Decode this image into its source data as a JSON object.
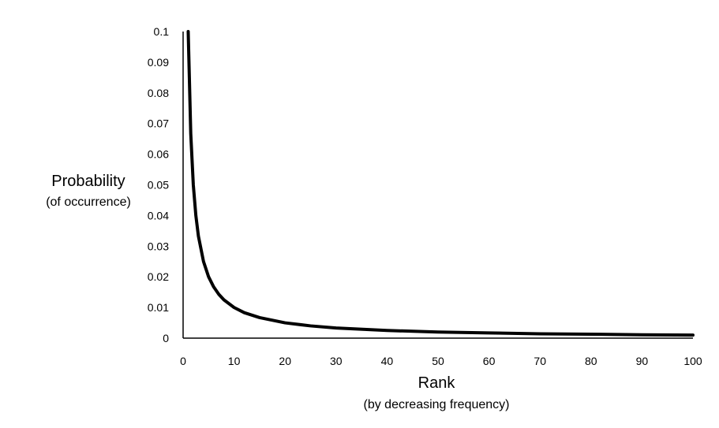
{
  "chart_data": {
    "type": "line",
    "title": "",
    "xlabel": "Rank",
    "xlabel_sub": "(by decreasing frequency)",
    "ylabel": "Probability",
    "ylabel_sub": "(of occurrence)",
    "xlim": [
      0,
      100
    ],
    "ylim": [
      0,
      0.1
    ],
    "x_ticks": [
      0,
      10,
      20,
      30,
      40,
      50,
      60,
      70,
      80,
      90,
      100
    ],
    "y_ticks": [
      0,
      0.01,
      0.02,
      0.03,
      0.04,
      0.05,
      0.06,
      0.07,
      0.08,
      0.09,
      0.1
    ],
    "grid": false,
    "legend": "none",
    "line_color": "#000000",
    "series": [
      {
        "x": [
          1,
          1.5,
          2,
          2.5,
          3,
          4,
          5,
          6,
          7,
          8,
          10,
          12,
          15,
          20,
          25,
          30,
          40,
          50,
          60,
          70,
          80,
          90,
          100
        ],
        "values": [
          0.1,
          0.0667,
          0.05,
          0.04,
          0.0333,
          0.025,
          0.02,
          0.0167,
          0.0143,
          0.0125,
          0.01,
          0.0083,
          0.0067,
          0.005,
          0.004,
          0.0033,
          0.0025,
          0.002,
          0.0017,
          0.0014,
          0.0013,
          0.0011,
          0.001
        ]
      }
    ]
  }
}
